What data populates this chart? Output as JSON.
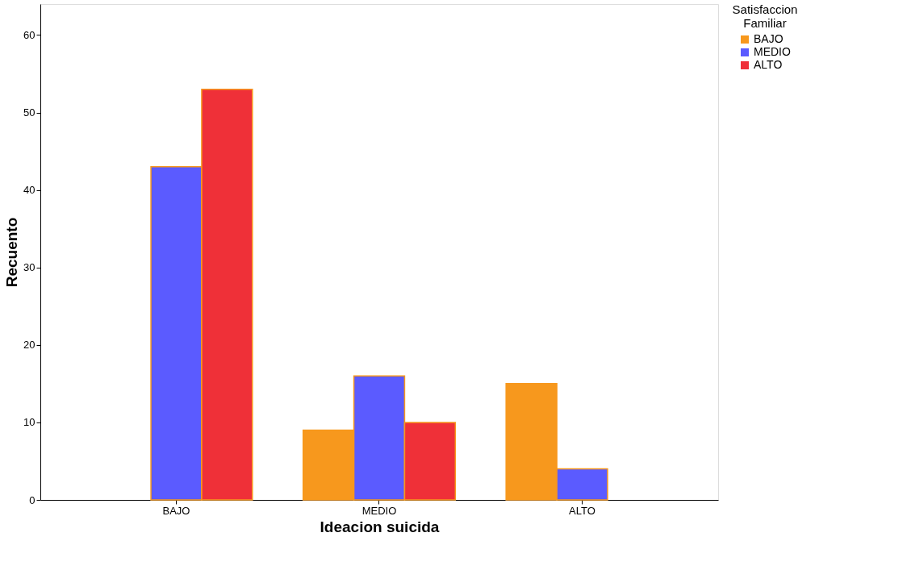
{
  "chart_data": {
    "type": "bar",
    "xlabel": "Ideacion suicida",
    "ylabel": "Recuento",
    "legend_title": "Satisfaccion Familiar",
    "categories": [
      "BAJO",
      "MEDIO",
      "ALTO"
    ],
    "series": [
      {
        "name": "BAJO",
        "color": "#f7981d",
        "values": [
          null,
          9,
          15
        ]
      },
      {
        "name": "MEDIO",
        "color": "#5b5bff",
        "values": [
          43,
          16,
          4
        ]
      },
      {
        "name": "ALTO",
        "color": "#ef3038",
        "values": [
          53,
          10,
          null
        ]
      }
    ],
    "ylim": [
      0,
      64
    ],
    "yticks": [
      0,
      10,
      20,
      30,
      40,
      50,
      60
    ],
    "grid": false,
    "legend": "top right"
  }
}
